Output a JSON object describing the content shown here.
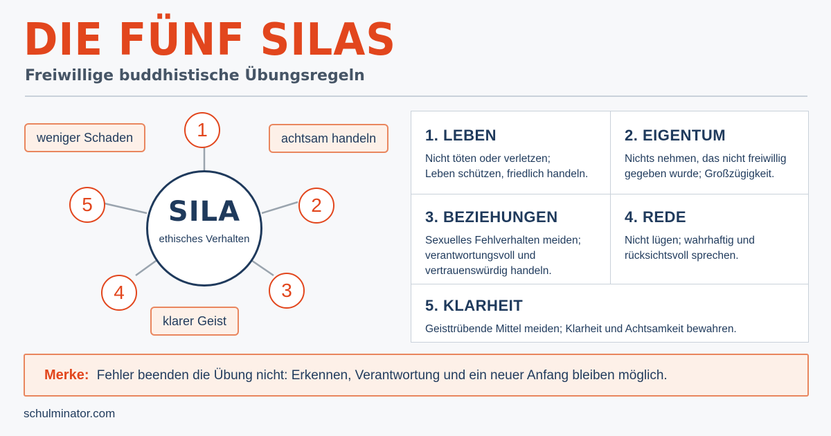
{
  "header": {
    "title": "DIE FÜNF SILAS",
    "subtitle": "Freiwillige buddhistische Übungsregeln"
  },
  "diagram": {
    "hub_title": "SILA",
    "hub_subtitle": "ethisches Verhalten",
    "numbers": [
      "1",
      "2",
      "3",
      "4",
      "5"
    ],
    "tags": {
      "top_left": "weniger Schaden",
      "top_right": "achtsam handeln",
      "bottom": "klarer Geist"
    }
  },
  "precepts": [
    {
      "title": "1. LEBEN",
      "text": "Nicht töten oder verletzen;\nLeben schützen, friedlich handeln."
    },
    {
      "title": "2. EIGENTUM",
      "text": "Nichts nehmen, das nicht freiwillig\ngegeben wurde; Großzügigkeit."
    },
    {
      "title": "3. BEZIEHUNGEN",
      "text": "Sexuelles Fehlverhalten meiden;\nverantwortungsvoll und\nvertrauenswürdig handeln."
    },
    {
      "title": "4. REDE",
      "text": "Nicht lügen; wahrhaftig und\nrücksichtsvoll sprechen."
    },
    {
      "title": "5. KLARHEIT",
      "text": "Geisttrübende Mittel meiden; Klarheit und Achtsamkeit bewahren."
    }
  ],
  "note": {
    "label": "Merke:",
    "text": "Fehler beenden die Übung nicht: Erkennen, Verantwortung und ein neuer Anfang bleiben möglich."
  },
  "footer": "schulminator.com",
  "colors": {
    "accent": "#e2461d",
    "navy": "#1f3a5c",
    "tag_bg": "#fdf0e8",
    "tag_border": "#e9865e"
  }
}
